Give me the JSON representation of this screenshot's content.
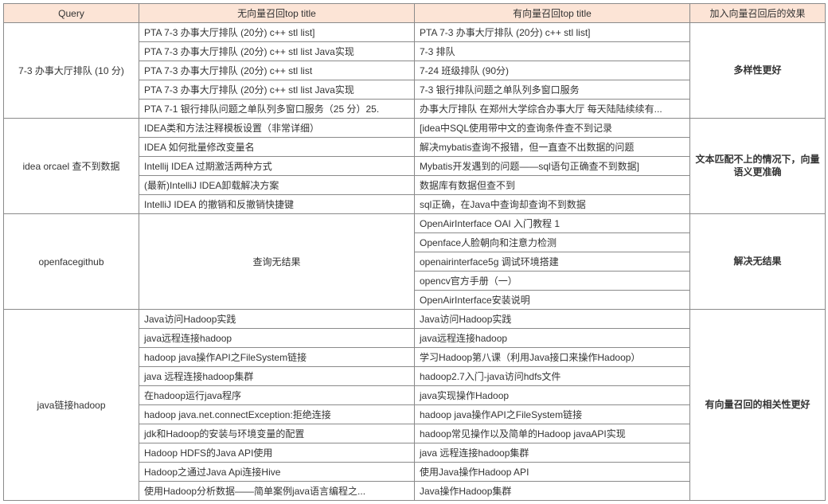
{
  "header": {
    "col1": "Query",
    "col2": "无向量召回top title",
    "col3": "有向量召回top title",
    "col4": "加入向量召回后的效果",
    "bg": "#fce4d6"
  },
  "groups": [
    {
      "query": "7-3 办事大厅排队 (10 分)",
      "effect": "多样性更好",
      "rows": [
        {
          "a": "PTA 7-3 办事大厅排队 (20分) c++ stl list]",
          "b": "PTA 7-3 办事大厅排队 (20分) c++ stl list]"
        },
        {
          "a": "PTA 7-3 办事大厅排队 (20分) c++ stl list Java实现",
          "b": "7-3 排队"
        },
        {
          "a": "PTA 7-3 办事大厅排队 (20分) c++ stl list",
          "b": "7-24 班级排队 (90分)"
        },
        {
          "a": "PTA 7-3 办事大厅排队 (20分) c++ stl list Java实现",
          "b": "7-3 银行排队问题之单队列多窗口服务"
        },
        {
          "a": "PTA 7-1 银行排队问题之单队列多窗口服务（25 分）25.",
          "b": "办事大厅排队 在郑州大学综合办事大厅 每天陆陆续续有..."
        }
      ]
    },
    {
      "query": "idea orcael 查不到数据",
      "effect": "文本匹配不上的情况下，向量语义更准确",
      "rows": [
        {
          "a": "IDEA类和方法注释模板设置（非常详细）",
          "b": "[idea中SQL使用带中文的查询条件查不到记录"
        },
        {
          "a": "IDEA 如何批量修改变量名",
          "b": "解决mybatis查询不报错，但一直查不出数据的问题"
        },
        {
          "a": "Intellij IDEA 过期激活两种方式",
          "b": "Mybatis开发遇到的问题——sql语句正确查不到数据]"
        },
        {
          "a": "(最新)IntelliJ IDEA卸载解决方案",
          "b": "数据库有数据但查不到"
        },
        {
          "a": "IntelliJ IDEA 的撤销和反撤销快捷键",
          "b": "sql正确，在Java中查询却查询不到数据"
        }
      ]
    },
    {
      "query": "openfacegithub",
      "effect": "解决无结果",
      "noResultLabel": "查询无结果",
      "rows": [
        {
          "b": "OpenAirInterface OAI 入门教程 1"
        },
        {
          "b": "Openface人脸朝向和注意力检测"
        },
        {
          "b": "openairinterface5g 调试环境搭建"
        },
        {
          "b": "opencv官方手册（一）"
        },
        {
          "b": "OpenAirInterface安装说明"
        }
      ]
    },
    {
      "query": "java链接hadoop",
      "effect": "有向量召回的相关性更好",
      "rows": [
        {
          "a": "Java访问Hadoop实践",
          "b": "Java访问Hadoop实践"
        },
        {
          "a": "java远程连接hadoop",
          "b": "java远程连接hadoop"
        },
        {
          "a": "hadoop java操作API之FileSystem链接",
          "b": "学习Hadoop第八课（利用Java接口来操作Hadoop）"
        },
        {
          "a": "java 远程连接hadoop集群",
          "b": "hadoop2.7入门-java访问hdfs文件"
        },
        {
          "a": "在hadoop运行java程序",
          "b": "java实现操作Hadoop"
        },
        {
          "a": "hadoop java.net.connectException:拒绝连接",
          "b": "hadoop java操作API之FileSystem链接"
        },
        {
          "a": "jdk和Hadoop的安装与环境变量的配置",
          "b": "hadoop常见操作以及简单的Hadoop javaAPI实现"
        },
        {
          "a": "Hadoop HDFS的Java API使用",
          "b": "java 远程连接hadoop集群"
        },
        {
          "a": "Hadoop之通过Java Api连接Hive",
          "b": "使用Java操作Hadoop API"
        },
        {
          "a": "使用Hadoop分析数据——简单案例java语言编程之...",
          "b": "Java操作Hadoop集群"
        }
      ]
    }
  ]
}
